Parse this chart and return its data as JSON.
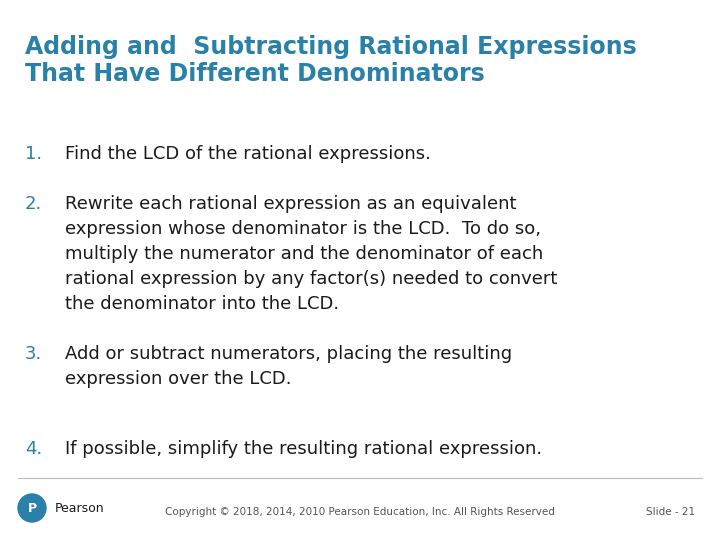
{
  "title_line1": "Adding and  Subtracting Rational Expressions",
  "title_line2": "That Have Different Denominators",
  "title_color": "#2980A8",
  "background_color": "#FFFFFF",
  "items": [
    {
      "number": "1.",
      "lines": [
        "Find the LCD of the rational expressions."
      ]
    },
    {
      "number": "2.",
      "lines": [
        "Rewrite each rational expression as an equivalent",
        "expression whose denominator is the LCD.  To do so,",
        "multiply the numerator and the denominator of each",
        "rational expression by any factor(s) needed to convert",
        "the denominator into the LCD."
      ]
    },
    {
      "number": "3.",
      "lines": [
        "Add or subtract numerators, placing the resulting",
        "expression over the LCD."
      ]
    },
    {
      "number": "4.",
      "lines": [
        "If possible, simplify the resulting rational expression."
      ]
    }
  ],
  "number_color": "#2980A8",
  "text_color": "#1a1a1a",
  "footer_text": "Copyright © 2018, 2014, 2010 Pearson Education, Inc. All Rights Reserved",
  "slide_number": "Slide - 21",
  "footer_color": "#555555",
  "pearson_color": "#2980A8",
  "title_fontsize": 17,
  "body_fontsize": 13,
  "number_fontsize": 13
}
